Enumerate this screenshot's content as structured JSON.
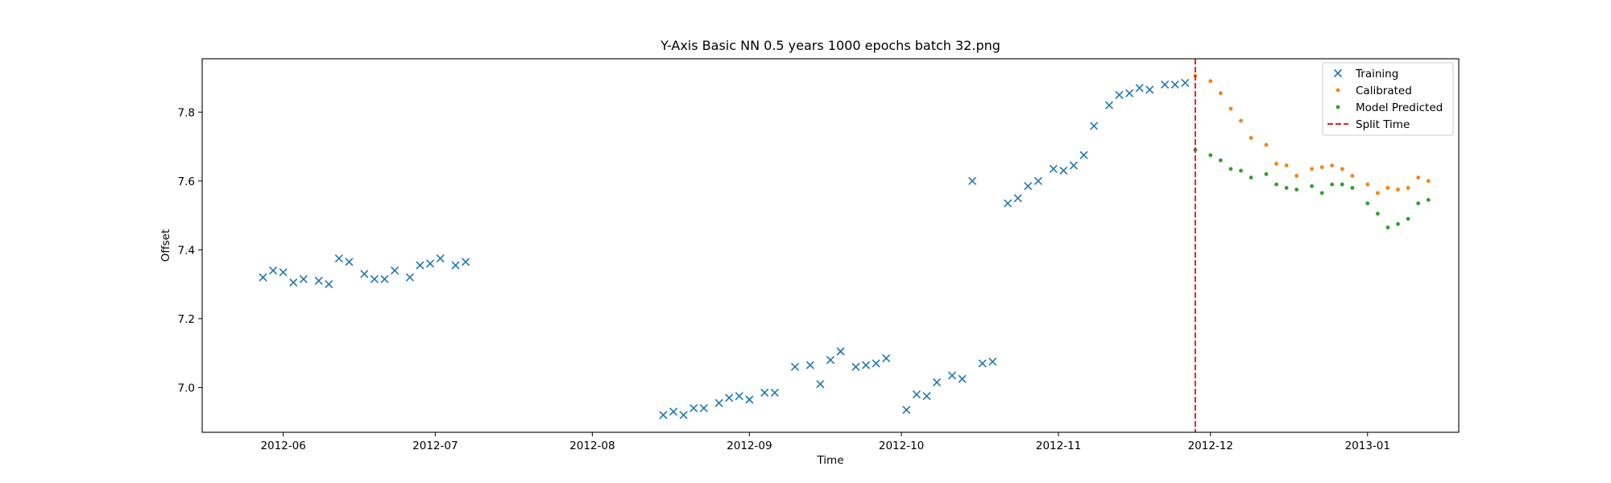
{
  "chart_data": {
    "type": "scatter",
    "title": "Y-Axis Basic NN 0.5 years 1000 epochs batch 32.png",
    "xlabel": "Time",
    "ylabel": "Offset",
    "xlim": [
      "2012-05-16",
      "2013-01-19"
    ],
    "ylim": [
      6.87,
      7.955
    ],
    "x_ticks": [
      "2012-06-01",
      "2012-07-01",
      "2012-08-01",
      "2012-09-01",
      "2012-10-01",
      "2012-11-01",
      "2012-12-01",
      "2013-01-01"
    ],
    "x_tick_labels": [
      "2012-06",
      "2012-07",
      "2012-08",
      "2012-09",
      "2012-10",
      "2012-11",
      "2012-12",
      "2013-01"
    ],
    "y_ticks": [
      7.0,
      7.2,
      7.4,
      7.6,
      7.8
    ],
    "y_tick_labels": [
      "7.0",
      "7.2",
      "7.4",
      "7.6",
      "7.8"
    ],
    "grid": false,
    "legend_position": "top-right",
    "series": [
      {
        "name": "Training",
        "marker": "x",
        "color": "#1f77b4",
        "points": [
          [
            "2012-05-28",
            7.32
          ],
          [
            "2012-05-30",
            7.34
          ],
          [
            "2012-06-01",
            7.335
          ],
          [
            "2012-06-03",
            7.305
          ],
          [
            "2012-06-05",
            7.315
          ],
          [
            "2012-06-08",
            7.31
          ],
          [
            "2012-06-10",
            7.3
          ],
          [
            "2012-06-12",
            7.375
          ],
          [
            "2012-06-14",
            7.365
          ],
          [
            "2012-06-17",
            7.33
          ],
          [
            "2012-06-19",
            7.315
          ],
          [
            "2012-06-21",
            7.315
          ],
          [
            "2012-06-23",
            7.34
          ],
          [
            "2012-06-26",
            7.32
          ],
          [
            "2012-06-28",
            7.355
          ],
          [
            "2012-06-30",
            7.36
          ],
          [
            "2012-07-02",
            7.375
          ],
          [
            "2012-07-05",
            7.355
          ],
          [
            "2012-07-07",
            7.365
          ],
          [
            "2012-08-15",
            6.92
          ],
          [
            "2012-08-17",
            6.93
          ],
          [
            "2012-08-19",
            6.92
          ],
          [
            "2012-08-21",
            6.94
          ],
          [
            "2012-08-23",
            6.94
          ],
          [
            "2012-08-26",
            6.955
          ],
          [
            "2012-08-28",
            6.97
          ],
          [
            "2012-08-30",
            6.975
          ],
          [
            "2012-09-01",
            6.965
          ],
          [
            "2012-09-04",
            6.985
          ],
          [
            "2012-09-06",
            6.985
          ],
          [
            "2012-09-10",
            7.06
          ],
          [
            "2012-09-13",
            7.065
          ],
          [
            "2012-09-15",
            7.01
          ],
          [
            "2012-09-17",
            7.08
          ],
          [
            "2012-09-19",
            7.105
          ],
          [
            "2012-09-22",
            7.06
          ],
          [
            "2012-09-24",
            7.065
          ],
          [
            "2012-09-26",
            7.07
          ],
          [
            "2012-09-28",
            7.085
          ],
          [
            "2012-10-02",
            6.935
          ],
          [
            "2012-10-04",
            6.98
          ],
          [
            "2012-10-06",
            6.975
          ],
          [
            "2012-10-08",
            7.015
          ],
          [
            "2012-10-11",
            7.035
          ],
          [
            "2012-10-13",
            7.025
          ],
          [
            "2012-10-15",
            7.6
          ],
          [
            "2012-10-17",
            7.07
          ],
          [
            "2012-10-19",
            7.075
          ],
          [
            "2012-10-22",
            7.535
          ],
          [
            "2012-10-24",
            7.55
          ],
          [
            "2012-10-26",
            7.585
          ],
          [
            "2012-10-28",
            7.6
          ],
          [
            "2012-10-31",
            7.635
          ],
          [
            "2012-11-02",
            7.63
          ],
          [
            "2012-11-04",
            7.645
          ],
          [
            "2012-11-06",
            7.675
          ],
          [
            "2012-11-08",
            7.76
          ],
          [
            "2012-11-11",
            7.82
          ],
          [
            "2012-11-13",
            7.85
          ],
          [
            "2012-11-15",
            7.855
          ],
          [
            "2012-11-17",
            7.87
          ],
          [
            "2012-11-19",
            7.865
          ],
          [
            "2012-11-22",
            7.88
          ],
          [
            "2012-11-24",
            7.88
          ],
          [
            "2012-11-26",
            7.885
          ]
        ]
      },
      {
        "name": "Calibrated",
        "marker": "dot",
        "color": "#ff7f0e",
        "points": [
          [
            "2012-11-28",
            7.905
          ],
          [
            "2012-12-01",
            7.89
          ],
          [
            "2012-12-03",
            7.855
          ],
          [
            "2012-12-05",
            7.81
          ],
          [
            "2012-12-07",
            7.775
          ],
          [
            "2012-12-09",
            7.725
          ],
          [
            "2012-12-12",
            7.705
          ],
          [
            "2012-12-14",
            7.65
          ],
          [
            "2012-12-16",
            7.645
          ],
          [
            "2012-12-18",
            7.615
          ],
          [
            "2012-12-21",
            7.635
          ],
          [
            "2012-12-23",
            7.64
          ],
          [
            "2012-12-25",
            7.645
          ],
          [
            "2012-12-27",
            7.635
          ],
          [
            "2012-12-29",
            7.615
          ],
          [
            "2013-01-01",
            7.59
          ],
          [
            "2013-01-03",
            7.565
          ],
          [
            "2013-01-05",
            7.58
          ],
          [
            "2013-01-07",
            7.575
          ],
          [
            "2013-01-09",
            7.58
          ],
          [
            "2013-01-11",
            7.61
          ],
          [
            "2013-01-13",
            7.6
          ]
        ]
      },
      {
        "name": "Model Predicted",
        "marker": "dot",
        "color": "#2ca02c",
        "points": [
          [
            "2012-11-28",
            7.69
          ],
          [
            "2012-12-01",
            7.675
          ],
          [
            "2012-12-03",
            7.66
          ],
          [
            "2012-12-05",
            7.635
          ],
          [
            "2012-12-07",
            7.63
          ],
          [
            "2012-12-09",
            7.61
          ],
          [
            "2012-12-12",
            7.62
          ],
          [
            "2012-12-14",
            7.59
          ],
          [
            "2012-12-16",
            7.58
          ],
          [
            "2012-12-18",
            7.575
          ],
          [
            "2012-12-21",
            7.585
          ],
          [
            "2012-12-23",
            7.565
          ],
          [
            "2012-12-25",
            7.59
          ],
          [
            "2012-12-27",
            7.59
          ],
          [
            "2012-12-29",
            7.58
          ],
          [
            "2013-01-01",
            7.535
          ],
          [
            "2013-01-03",
            7.505
          ],
          [
            "2013-01-05",
            7.465
          ],
          [
            "2013-01-07",
            7.475
          ],
          [
            "2013-01-09",
            7.49
          ],
          [
            "2013-01-11",
            7.535
          ],
          [
            "2013-01-13",
            7.545
          ]
        ]
      }
    ],
    "split_line": {
      "name": "Split Time",
      "x": "2012-11-28",
      "color": "#d62728",
      "style": "dashed"
    }
  }
}
